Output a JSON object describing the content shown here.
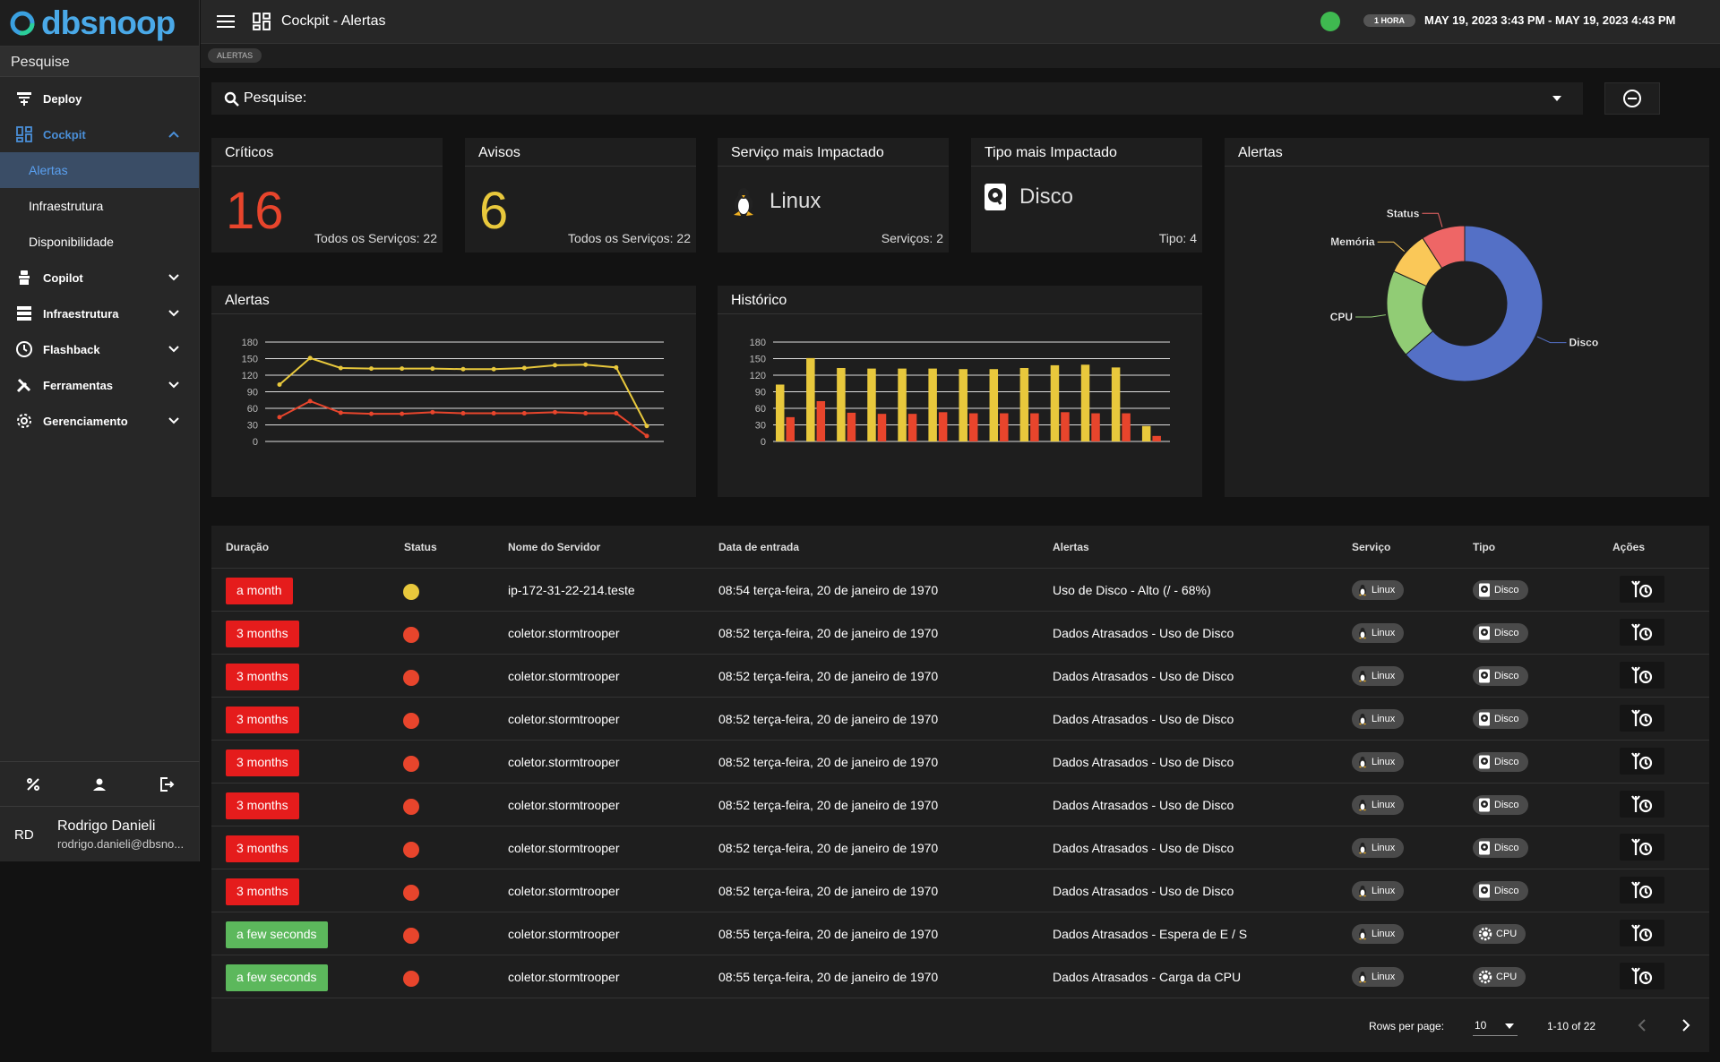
{
  "brand": {
    "name": "dbsnoop"
  },
  "sidebar": {
    "search_label": "Pesquise",
    "items": [
      {
        "label": "Deploy",
        "icon": "deploy-icon"
      },
      {
        "label": "Cockpit",
        "icon": "dashboard-icon",
        "open": true
      },
      {
        "label": "Copilot",
        "icon": "copilot-icon"
      },
      {
        "label": "Infraestrutura",
        "icon": "server-icon"
      },
      {
        "label": "Flashback",
        "icon": "clock-icon"
      },
      {
        "label": "Ferramentas",
        "icon": "tools-icon"
      },
      {
        "label": "Gerenciamento",
        "icon": "gear-icon"
      }
    ],
    "cockpit_sub": [
      "Alertas",
      "Infraestrutura",
      "Disponibilidade"
    ],
    "user": {
      "initials": "RD",
      "name": "Rodrigo Danieli",
      "email": "rodrigo.danieli@dbsno..."
    }
  },
  "topbar": {
    "title": "Cockpit - Alertas",
    "range_badge": "1 HORA",
    "date_range": "MAY 19, 2023 3:43 PM - MAY 19, 2023 4:43 PM"
  },
  "breadcrumb": "ALERTAS",
  "search": {
    "label": "Pesquise:"
  },
  "cards": {
    "criticos": {
      "title": "Críticos",
      "value": "16",
      "footer": "Todos os Serviços: 22"
    },
    "avisos": {
      "title": "Avisos",
      "value": "6",
      "footer": "Todos os Serviços: 22"
    },
    "servico": {
      "title": "Serviço mais Impactado",
      "value": "Linux",
      "footer": "Serviços: 2"
    },
    "tipo": {
      "title": "Tipo mais Impactado",
      "value": "Disco",
      "footer": "Tipo: 4"
    }
  },
  "charts": {
    "alertas_title": "Alertas",
    "historico_title": "Histórico",
    "pie_title": "Alertas"
  },
  "colors": {
    "yellow": "#e8c83c",
    "red": "#e8452c",
    "blue": "#5470c6",
    "green": "#91cc75",
    "amber": "#fac858",
    "pink": "#ee6666"
  },
  "chart_data": [
    {
      "type": "line",
      "y_ticks": [
        0,
        30,
        60,
        90,
        120,
        150,
        180
      ],
      "ylim": [
        0,
        180
      ],
      "series": [
        {
          "values": [
            103,
            151,
            133,
            132,
            132,
            132,
            131,
            131,
            133,
            138,
            139,
            134,
            28
          ]
        },
        {
          "values": [
            44,
            73,
            52,
            50,
            50,
            53,
            51,
            51,
            51,
            53,
            51,
            51,
            10
          ]
        }
      ]
    },
    {
      "type": "bar",
      "y_ticks": [
        0,
        30,
        60,
        90,
        120,
        150,
        180
      ],
      "ylim": [
        0,
        180
      ],
      "series": [
        {
          "values": [
            103,
            151,
            133,
            132,
            132,
            132,
            131,
            131,
            133,
            138,
            139,
            134,
            28
          ]
        },
        {
          "values": [
            44,
            73,
            52,
            50,
            50,
            53,
            51,
            51,
            51,
            53,
            51,
            51,
            10
          ]
        }
      ]
    },
    {
      "type": "pie",
      "labels": [
        "Disco",
        "CPU",
        "Memória",
        "Status"
      ],
      "values": [
        14,
        4,
        2,
        2
      ]
    }
  ],
  "table": {
    "headers": [
      "Duração",
      "Status",
      "Nome do Servidor",
      "Data de entrada",
      "Alertas",
      "Serviço",
      "Tipo",
      "Ações"
    ],
    "rows": [
      {
        "dur": "a month",
        "dc": "red",
        "st": "#e8c83c",
        "srv": "ip-172-31-22-214.teste",
        "date": "08:54 terça-feira, 20 de janeiro de 1970",
        "alert": "Uso de Disco - Alto (/ - 68%)",
        "svc": "Linux",
        "tipo": "Disco"
      },
      {
        "dur": "3 months",
        "dc": "red",
        "st": "#e8452c",
        "srv": "coletor.stormtrooper",
        "date": "08:52 terça-feira, 20 de janeiro de 1970",
        "alert": "Dados Atrasados - Uso de Disco",
        "svc": "Linux",
        "tipo": "Disco"
      },
      {
        "dur": "3 months",
        "dc": "red",
        "st": "#e8452c",
        "srv": "coletor.stormtrooper",
        "date": "08:52 terça-feira, 20 de janeiro de 1970",
        "alert": "Dados Atrasados - Uso de Disco",
        "svc": "Linux",
        "tipo": "Disco"
      },
      {
        "dur": "3 months",
        "dc": "red",
        "st": "#e8452c",
        "srv": "coletor.stormtrooper",
        "date": "08:52 terça-feira, 20 de janeiro de 1970",
        "alert": "Dados Atrasados - Uso de Disco",
        "svc": "Linux",
        "tipo": "Disco"
      },
      {
        "dur": "3 months",
        "dc": "red",
        "st": "#e8452c",
        "srv": "coletor.stormtrooper",
        "date": "08:52 terça-feira, 20 de janeiro de 1970",
        "alert": "Dados Atrasados - Uso de Disco",
        "svc": "Linux",
        "tipo": "Disco"
      },
      {
        "dur": "3 months",
        "dc": "red",
        "st": "#e8452c",
        "srv": "coletor.stormtrooper",
        "date": "08:52 terça-feira, 20 de janeiro de 1970",
        "alert": "Dados Atrasados - Uso de Disco",
        "svc": "Linux",
        "tipo": "Disco"
      },
      {
        "dur": "3 months",
        "dc": "red",
        "st": "#e8452c",
        "srv": "coletor.stormtrooper",
        "date": "08:52 terça-feira, 20 de janeiro de 1970",
        "alert": "Dados Atrasados - Uso de Disco",
        "svc": "Linux",
        "tipo": "Disco"
      },
      {
        "dur": "3 months",
        "dc": "red",
        "st": "#e8452c",
        "srv": "coletor.stormtrooper",
        "date": "08:52 terça-feira, 20 de janeiro de 1970",
        "alert": "Dados Atrasados - Uso de Disco",
        "svc": "Linux",
        "tipo": "Disco"
      },
      {
        "dur": "a few seconds",
        "dc": "green",
        "st": "#e8452c",
        "srv": "coletor.stormtrooper",
        "date": "08:55 terça-feira, 20 de janeiro de 1970",
        "alert": "Dados Atrasados - Espera de E / S",
        "svc": "Linux",
        "tipo": "CPU"
      },
      {
        "dur": "a few seconds",
        "dc": "green",
        "st": "#e8452c",
        "srv": "coletor.stormtrooper",
        "date": "08:55 terça-feira, 20 de janeiro de 1970",
        "alert": "Dados Atrasados - Carga da CPU",
        "svc": "Linux",
        "tipo": "CPU"
      }
    ],
    "footer": {
      "rows_label": "Rows per page:",
      "rows_value": "10",
      "range": "1-10 of 22"
    }
  }
}
